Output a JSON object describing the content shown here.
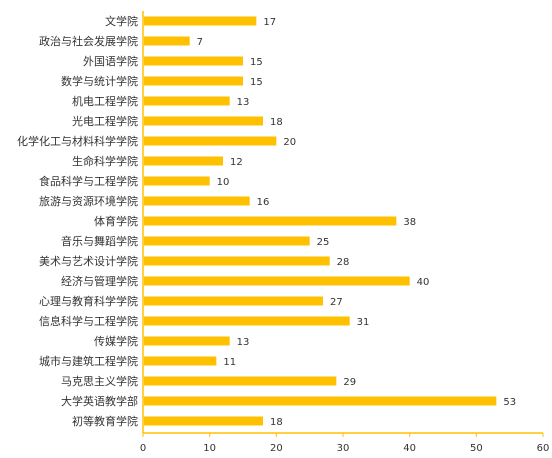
{
  "chart_data": {
    "type": "bar",
    "orientation": "horizontal",
    "categories": [
      "文学院",
      "政治与社会发展学院",
      "外国语学院",
      "数学与统计学院",
      "机电工程学院",
      "光电工程学院",
      "化学化工与材料科学学院",
      "生命科学学院",
      "食品科学与工程学院",
      "旅游与资源环境学院",
      "体育学院",
      "音乐与舞蹈学院",
      "美术与艺术设计学院",
      "经济与管理学院",
      "心理与教育科学学院",
      "信息科学与工程学院",
      "传媒学院",
      "城市与建筑工程学院",
      "马克思主义学院",
      "大学英语教学部",
      "初等教育学院"
    ],
    "values": [
      17,
      7,
      15,
      15,
      13,
      18,
      20,
      12,
      10,
      16,
      38,
      25,
      28,
      40,
      27,
      31,
      13,
      11,
      29,
      53,
      18
    ],
    "xlim": [
      0,
      60
    ],
    "xticks": [
      "0",
      "10",
      "20",
      "30",
      "40",
      "50",
      "60"
    ],
    "grid": false,
    "legend": "none",
    "title": "",
    "xlabel": "",
    "ylabel": "",
    "colors": {
      "bar": "#FFC000",
      "axis": "#FFC000",
      "text": "#333333"
    }
  }
}
